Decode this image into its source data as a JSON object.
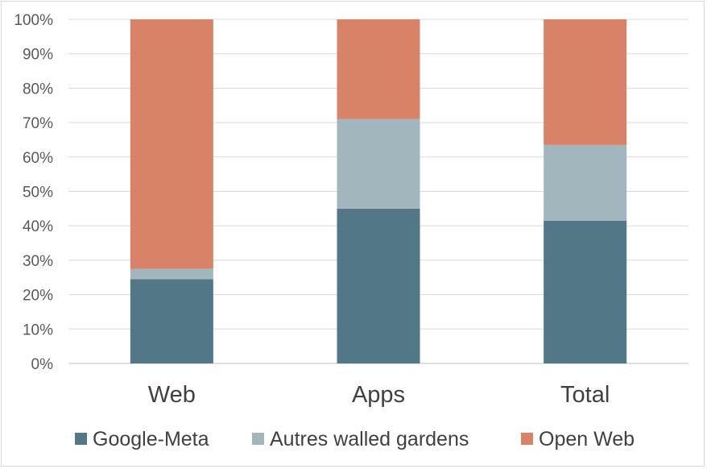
{
  "chart_data": {
    "type": "bar",
    "stacked": true,
    "percent": true,
    "title": "",
    "xlabel": "",
    "ylabel": "",
    "categories": [
      "Web",
      "Apps",
      "Total"
    ],
    "series": [
      {
        "name": "Google-Meta",
        "color": "#527787",
        "values": [
          24.5,
          45,
          41.5
        ]
      },
      {
        "name": "Autres walled gardens",
        "color": "#a2b7bd",
        "values": [
          3,
          26,
          22
        ]
      },
      {
        "name": "Open Web",
        "color": "#d88267",
        "values": [
          72.5,
          29,
          36.5
        ]
      }
    ],
    "ylim": [
      0,
      100
    ],
    "yticks": [
      "0%",
      "10%",
      "20%",
      "30%",
      "40%",
      "50%",
      "60%",
      "70%",
      "80%",
      "90%",
      "100%"
    ],
    "grid": true,
    "legend": "bottom"
  }
}
